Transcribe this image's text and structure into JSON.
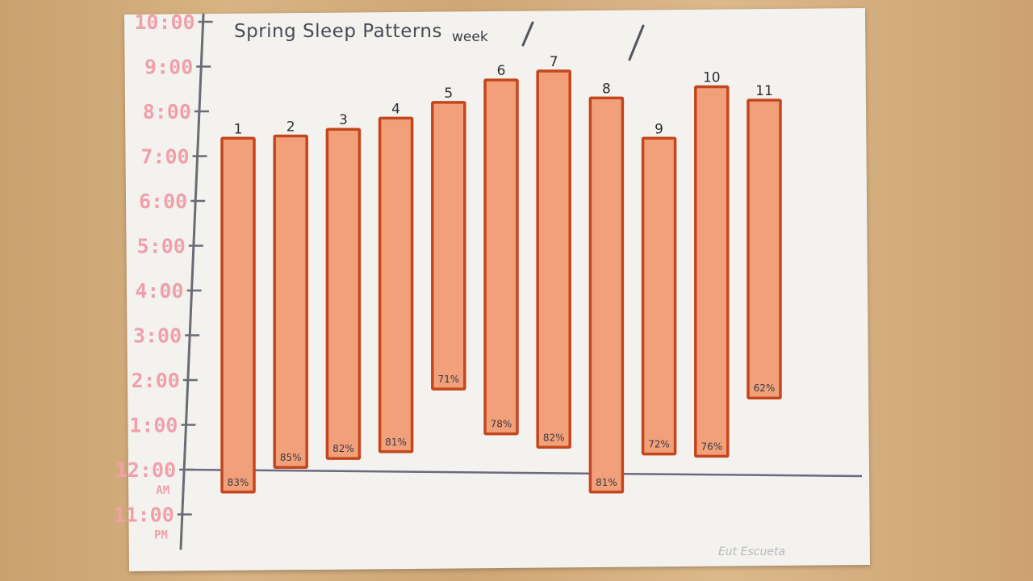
{
  "chart_data": {
    "type": "bar",
    "title": "Spring Sleep Patterns",
    "subtitle": "week",
    "signature": "Eut Escueta",
    "categories": [
      "1",
      "2",
      "3",
      "4",
      "5",
      "6",
      "7",
      "8",
      "9",
      "10",
      "11"
    ],
    "series": [
      {
        "bedtime_hours_from_midnight": [
          -0.5,
          0.05,
          0.25,
          0.4,
          1.8,
          0.8,
          0.5,
          -0.5,
          0.35,
          0.3,
          1.6
        ],
        "wake_hours_from_midnight": [
          7.4,
          7.45,
          7.6,
          7.85,
          8.2,
          8.7,
          8.9,
          8.3,
          7.4,
          8.55,
          8.25
        ],
        "sleep_quality": [
          "83%",
          "85%",
          "82%",
          "81%",
          "71%",
          "78%",
          "82%",
          "81%",
          "72%",
          "76%",
          "62%"
        ]
      }
    ],
    "y_tick_labels": [
      "10:00",
      "9:00",
      "8:00",
      "7:00",
      "6:00",
      "5:00",
      "4:00",
      "3:00",
      "2:00",
      "1:00",
      "12:00 AM",
      "11:00 PM"
    ],
    "ylim": [
      -1,
      10
    ],
    "grid": false,
    "colors": {
      "bar_fill": "#f2a07a",
      "bar_edge": "#c4461c",
      "axis": "#6b6b76",
      "tick_label": "#f0a0ab"
    }
  }
}
